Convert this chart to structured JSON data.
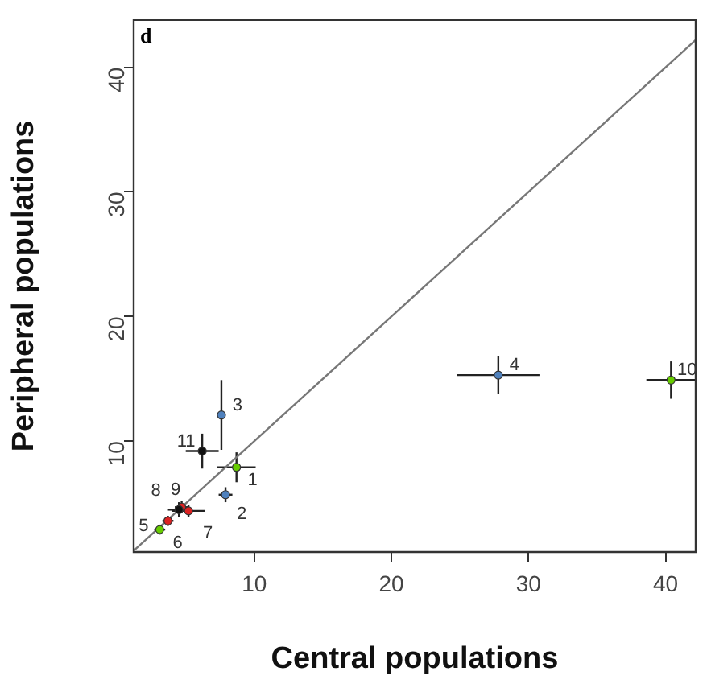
{
  "chart_data": {
    "type": "scatter",
    "xlabel": "Central populations",
    "ylabel": "Peripheral populations",
    "annotations": [
      "d",
      {
        "text": "1",
        "x": 8.7,
        "y": 7.9
      },
      {
        "text": "2",
        "x": 7.9,
        "y": 5.7
      },
      {
        "text": "3",
        "x": 7.6,
        "y": 12.1
      },
      {
        "text": "4",
        "x": 27.8,
        "y": 15.3
      },
      {
        "text": "5",
        "x": 3.1,
        "y": 2.9
      },
      {
        "text": "6",
        "x": 3.7,
        "y": 3.6
      },
      {
        "text": "7",
        "x": 5.2,
        "y": 4.4
      },
      {
        "text": "8",
        "x": 4.7,
        "y": 4.7
      },
      {
        "text": "9",
        "x": 4.5,
        "y": 4.5
      },
      {
        "text": "10",
        "x": 40.4,
        "y": 14.9
      },
      {
        "text": "11",
        "x": 6.2,
        "y": 9.2
      }
    ],
    "xlim": [
      1.2,
      42.2
    ],
    "xticks": [
      10,
      20,
      30,
      40
    ],
    "ylim": [
      1.1,
      43.8
    ],
    "yticks": [
      10,
      20,
      30,
      40
    ],
    "grid": false,
    "legend": false,
    "marker": "circle",
    "series": [
      {
        "x": [
          8.7,
          7.9,
          7.6,
          27.8,
          3.1,
          3.7,
          5.2,
          4.7,
          4.5,
          40.4,
          6.2
        ],
        "values": [
          7.9,
          5.7,
          12.1,
          15.3,
          2.9,
          3.6,
          4.4,
          4.7,
          4.5,
          14.9,
          9.2
        ],
        "colors": [
          "#66cc00",
          "#4f81bd",
          "#4f81bd",
          "#4f81bd",
          "#66cc00",
          "#dd2222",
          "#dd2222",
          "#dd2222",
          "#111111",
          "#66cc00",
          "#111111"
        ],
        "xerrors": [
          1.4,
          0.5,
          0.3,
          3.0,
          0.4,
          0.4,
          1.2,
          0.5,
          0.8,
          1.8,
          1.2
        ],
        "errors": [
          1.2,
          0.6,
          2.8,
          1.5,
          0.4,
          0.4,
          0.5,
          0.5,
          0.6,
          1.5,
          1.4
        ]
      },
      {
        "type": "line",
        "color": "#777777",
        "x": [
          1.2,
          42.2
        ],
        "values": [
          1.2,
          42.2
        ],
        "marker": "none"
      }
    ]
  }
}
